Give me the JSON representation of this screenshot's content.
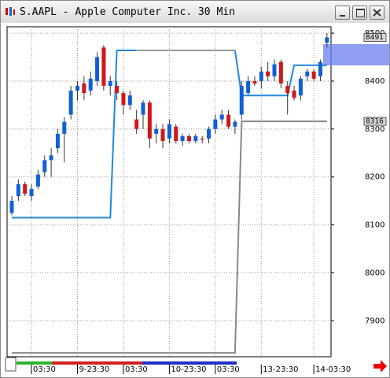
{
  "chart_data": {
    "type": "candlestick",
    "title": "S.AAPL - Apple Computer Inc. 30 Min",
    "categories": [
      null,
      null,
      null,
      "03:30",
      null,
      null,
      null,
      null,
      null,
      null,
      "9-23:30",
      null,
      null,
      null,
      null,
      null,
      null,
      "03:30",
      null,
      null,
      null,
      null,
      null,
      null,
      "10-23:30",
      null,
      null,
      null,
      null,
      null,
      null,
      "03:30",
      null,
      null,
      null,
      null,
      null,
      null,
      "13-23:30",
      null,
      null,
      null,
      null,
      null,
      null,
      null,
      "14-03:30",
      null,
      null
    ],
    "open": [
      8125,
      8160,
      8185,
      8160,
      8180,
      8210,
      8235,
      8260,
      8290,
      8330,
      8380,
      8395,
      8380,
      8400,
      8470,
      8390,
      8390,
      8375,
      8350,
      8320,
      8330,
      8355,
      8290,
      8300,
      8280,
      8305,
      8275,
      8285,
      8275,
      8280,
      8280,
      8300,
      8320,
      8330,
      8305,
      8330,
      8375,
      8400,
      8400,
      8420,
      8410,
      8440,
      8390,
      8380,
      8370,
      8410,
      8420,
      8410,
      8480
    ],
    "high": [
      8160,
      8195,
      8190,
      8185,
      8215,
      8245,
      8260,
      8300,
      8325,
      8390,
      8400,
      8410,
      8420,
      8460,
      8475,
      8410,
      8400,
      8380,
      8380,
      8340,
      8360,
      8360,
      8310,
      8310,
      8320,
      8310,
      8290,
      8290,
      8290,
      8285,
      8305,
      8330,
      8340,
      8340,
      8320,
      8400,
      8410,
      8410,
      8430,
      8440,
      8445,
      8445,
      8400,
      8390,
      8410,
      8425,
      8425,
      8445,
      8500
    ],
    "low": [
      8120,
      8150,
      8160,
      8150,
      8175,
      8200,
      8200,
      8250,
      8230,
      8320,
      8360,
      8360,
      8370,
      8390,
      8380,
      8370,
      8360,
      8330,
      8340,
      8290,
      8300,
      8260,
      8270,
      8260,
      8270,
      8270,
      8265,
      8270,
      8270,
      8270,
      8270,
      8290,
      8310,
      8300,
      8290,
      8320,
      8370,
      8390,
      8385,
      8400,
      8400,
      8385,
      8330,
      8360,
      8360,
      8400,
      8400,
      8400,
      8470
    ],
    "close": [
      8150,
      8185,
      8165,
      8175,
      8205,
      8235,
      8245,
      8290,
      8315,
      8380,
      8390,
      8375,
      8405,
      8450,
      8390,
      8400,
      8375,
      8350,
      8370,
      8300,
      8355,
      8280,
      8300,
      8275,
      8310,
      8275,
      8285,
      8275,
      8285,
      8278,
      8300,
      8320,
      8330,
      8305,
      8315,
      8390,
      8400,
      8395,
      8420,
      8410,
      8435,
      8395,
      8375,
      8365,
      8405,
      8420,
      8405,
      8440,
      8491
    ],
    "up_color": "#1060d8",
    "down_color": "#d01818",
    "lines": [
      {
        "color": "#1e88e0",
        "values": [
          8115,
          8115,
          8115,
          8115,
          8115,
          8115,
          8115,
          8115,
          8115,
          8115,
          8115,
          8115,
          8115,
          8115,
          8115,
          8115,
          8464,
          8464,
          8464,
          8464,
          null,
          null,
          null,
          null,
          null,
          null,
          null,
          null,
          null,
          null,
          null,
          null,
          null,
          null,
          8464,
          8370,
          8370,
          8370,
          8370,
          8370,
          8370,
          8370,
          8370,
          8433,
          8433,
          8433,
          8433,
          8433,
          8433
        ]
      },
      {
        "color": "#999999",
        "values": [
          null,
          null,
          null,
          null,
          null,
          null,
          null,
          null,
          null,
          null,
          null,
          null,
          null,
          null,
          null,
          null,
          null,
          null,
          null,
          8464,
          8464,
          8464,
          8464,
          8464,
          8464,
          8464,
          8464,
          8464,
          8464,
          8464,
          8464,
          8464,
          8464,
          8464,
          8464,
          null,
          null,
          null,
          null,
          null,
          null,
          null,
          null,
          null,
          null,
          null,
          null,
          null,
          null
        ]
      },
      {
        "color": "#888888",
        "values": [
          7833,
          7833,
          7833,
          7833,
          7833,
          7833,
          7833,
          7833,
          7833,
          7833,
          7833,
          7833,
          7833,
          7833,
          7833,
          7833,
          7833,
          7833,
          7833,
          7833,
          7833,
          7833,
          7833,
          7833,
          7833,
          7833,
          7833,
          7833,
          7833,
          7833,
          7833,
          7833,
          7833,
          7833,
          7833,
          8316,
          8316,
          8316,
          8316,
          8316,
          8316,
          8316,
          8316,
          8316,
          8316,
          8316,
          8316,
          8316,
          8316
        ]
      }
    ],
    "price_tags": [
      8491,
      8316
    ],
    "ylim": [
      7820,
      8510
    ],
    "yticks": [
      7900,
      8000,
      8100,
      8200,
      8300,
      8400,
      8500
    ],
    "grid": true
  }
}
